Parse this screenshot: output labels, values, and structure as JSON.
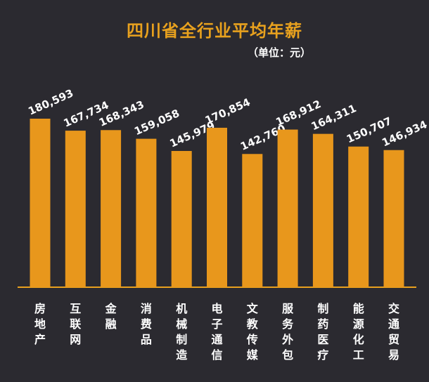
{
  "chart_data": {
    "type": "bar",
    "title": "四川省全行业平均年薪",
    "unit_label": "（单位：元）",
    "categories": [
      "房地产",
      "互联网",
      "金融",
      "消费品",
      "机械制造",
      "电子通信",
      "文教传媒",
      "服务外包",
      "制药医疗",
      "能源化工",
      "交通贸易"
    ],
    "values": [
      180593,
      167734,
      168343,
      159058,
      145979,
      170854,
      142760,
      168912,
      164311,
      150707,
      146934
    ],
    "value_labels": [
      "180,593",
      "167,734",
      "168,343",
      "159,058",
      "145,979",
      "170,854",
      "142,760",
      "168,912",
      "164,311",
      "150,707",
      "146,934"
    ],
    "xlabel": "",
    "ylabel": "",
    "grid": false,
    "bar_color": "#e8971c",
    "axis_color": "#e8a11e",
    "label_color": "#ffffff"
  }
}
